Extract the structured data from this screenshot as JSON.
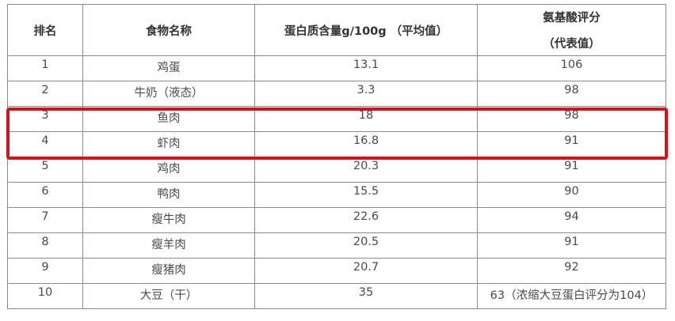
{
  "table": {
    "headers": [
      "排名",
      "食物名称",
      "蛋白质含量g/100g （平均值）",
      "氨基酸评分",
      "（代表值）"
    ],
    "rows": [
      [
        "1",
        "鸡蛋",
        "13.1",
        "106"
      ],
      [
        "2",
        "牛奶（液态）",
        "3.3",
        "98"
      ],
      [
        "3",
        "鱼肉",
        "18",
        "98"
      ],
      [
        "4",
        "虾肉",
        "16.8",
        "91"
      ],
      [
        "5",
        "鸡肉",
        "20.3",
        "91"
      ],
      [
        "6",
        "鸭肉",
        "15.5",
        "90"
      ],
      [
        "7",
        "瘦牛肉",
        "22.6",
        "94"
      ],
      [
        "8",
        "瘦羊肉",
        "20.5",
        "91"
      ],
      [
        "9",
        "瘦猪肉",
        "20.7",
        "92"
      ],
      [
        "10",
        "大豆（干）",
        "35",
        "63（浓缩大豆蛋白评分为104）"
      ]
    ]
  },
  "highlight": {
    "rows": [
      "3",
      "4"
    ],
    "color": "#d3121b"
  }
}
